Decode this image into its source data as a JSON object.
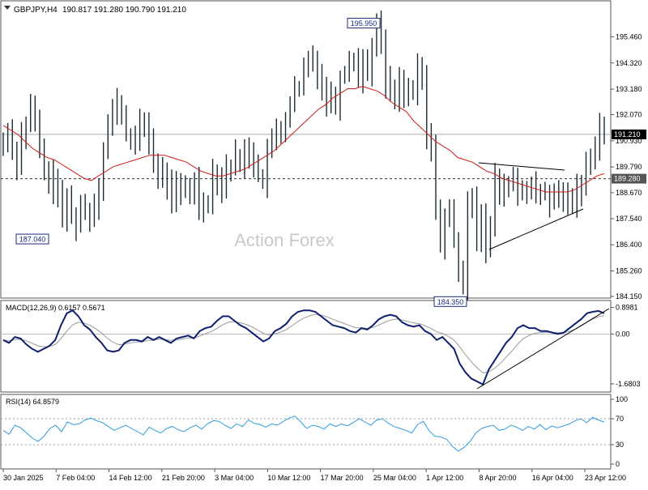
{
  "chart_data": {
    "type": "line",
    "symbol": "GBPJPY,H4",
    "ohlc_header": "190.817 191.280 190.790 191.210",
    "watermark": "Action Forex",
    "x_tick_labels": [
      "30 Jan 2025",
      "7 Feb 04:00",
      "14 Feb 12:00",
      "21 Feb 20:00",
      "3 Mar 04:00",
      "10 Mar 12:00",
      "17 Mar 20:00",
      "25 Mar 04:00",
      "1 Apr 12:00",
      "8 Apr 20:00",
      "16 Apr 04:00",
      "23 Apr 12:00"
    ],
    "price_panel": {
      "ylim": [
        184.15,
        196.57
      ],
      "y_ticks": [
        "195.460",
        "194.320",
        "193.180",
        "192.070",
        "190.930",
        "189.790",
        "188.670",
        "187.540",
        "186.400",
        "185.260",
        "184.150"
      ],
      "current_price": "191.210",
      "current_price_value": 191.21,
      "reference_level": "189.280",
      "reference_level_value": 189.28,
      "annotations": [
        {
          "label": "195.950",
          "value": 195.95
        },
        {
          "label": "187.040",
          "value": 187.04
        },
        {
          "label": "184.350",
          "value": 184.35
        }
      ],
      "price": [
        190.8,
        191.4,
        190.6,
        189.9,
        191.2,
        191.6,
        192.4,
        191.7,
        190.5,
        189.7,
        188.9,
        189.4,
        188.5,
        187.5,
        188.4,
        187.7,
        187.3,
        188.1,
        187.9,
        187.6,
        188.2,
        189.0,
        190.5,
        191.6,
        192.2,
        192.6,
        192.0,
        191.2,
        191.0,
        190.9,
        191.6,
        191.7,
        191.0,
        190.0,
        189.2,
        189.6,
        189.0,
        188.5,
        188.9,
        188.7,
        188.9,
        188.6,
        189.2,
        188.1,
        188.3,
        188.2,
        189.6,
        189.3,
        188.9,
        189.8,
        189.8,
        190.3,
        189.9,
        190.4,
        190.5,
        190.0,
        189.4,
        189.1,
        190.5,
        190.8,
        191.4,
        191.3,
        191.9,
        192.5,
        193.1,
        193.2,
        194.0,
        194.4,
        194.6,
        193.8,
        193.3,
        192.7,
        192.9,
        192.5,
        193.7,
        193.9,
        194.5,
        194.5,
        193.7,
        194.4,
        194.0,
        195.1,
        195.9,
        195.3,
        193.5,
        193.1,
        192.9,
        193.5,
        193.1,
        193.1,
        193.0,
        194.0,
        193.6,
        191.2,
        190.5,
        188.1,
        186.5,
        187.5,
        187.8,
        186.6,
        185.3,
        184.5,
        188.0,
        188.6,
        186.7,
        187.8,
        186.3,
        187.1,
        189.3,
        188.6,
        188.8,
        189.1,
        189.3,
        188.6,
        188.8,
        188.9,
        188.9,
        188.5,
        188.6,
        188.7,
        188.2,
        188.4,
        188.7,
        188.2,
        188.5,
        188.3,
        188.8,
        189.0,
        189.8,
        190.3,
        190.8,
        191.6,
        191.2
      ],
      "ma": [
        191.6,
        191.4,
        191.2,
        190.9,
        190.6,
        190.4,
        190.2,
        190.1,
        189.9,
        189.7,
        189.5,
        189.3,
        189.2,
        189.4,
        189.6,
        189.8,
        189.9,
        190.0,
        190.1,
        190.2,
        190.3,
        190.3,
        190.3,
        190.2,
        190.1,
        190.0,
        189.8,
        189.6,
        189.5,
        189.4,
        189.4,
        189.5,
        189.6,
        189.7,
        189.9,
        190.1,
        190.3,
        190.5,
        190.8,
        191.1,
        191.4,
        191.7,
        192.0,
        192.3,
        192.5,
        192.8,
        193.0,
        193.2,
        193.2,
        193.3,
        193.2,
        193.1,
        192.9,
        192.6,
        192.4,
        192.2,
        191.8,
        191.5,
        191.2,
        190.9,
        190.7,
        190.5,
        190.2,
        190.1,
        190.0,
        189.8,
        189.6,
        189.5,
        189.3,
        189.2,
        189.1,
        189.0,
        188.9,
        188.8,
        188.7,
        188.7,
        188.7,
        188.7,
        188.8,
        189.0,
        189.2,
        189.4,
        189.5
      ]
    },
    "macd_panel": {
      "label": "MACD(12,26,9) 0.6157 0.5671",
      "ylim": [
        -1.9,
        1.05
      ],
      "y_ticks": [
        "0.8981",
        "0.00",
        "-1.6803"
      ],
      "macd": [
        -0.2,
        -0.3,
        -0.1,
        -0.15,
        -0.35,
        -0.5,
        -0.6,
        -0.5,
        -0.4,
        -0.2,
        0.3,
        0.7,
        0.8,
        0.6,
        0.3,
        0.15,
        -0.1,
        -0.3,
        -0.55,
        -0.6,
        -0.55,
        -0.3,
        -0.2,
        -0.2,
        -0.25,
        -0.1,
        -0.2,
        -0.1,
        -0.2,
        -0.3,
        -0.15,
        -0.1,
        -0.05,
        -0.15,
        0.1,
        0.2,
        0.25,
        0.45,
        0.6,
        0.6,
        0.45,
        0.3,
        0.2,
        0.05,
        -0.1,
        -0.25,
        -0.15,
        0.1,
        0.2,
        0.35,
        0.6,
        0.75,
        0.8,
        0.8,
        0.75,
        0.6,
        0.45,
        0.3,
        0.25,
        0.2,
        0.1,
        0.05,
        0.2,
        0.15,
        0.3,
        0.5,
        0.6,
        0.65,
        0.6,
        0.4,
        0.3,
        0.25,
        0.3,
        0.1,
        0.0,
        -0.2,
        -0.1,
        -0.3,
        -0.5,
        -1.0,
        -1.3,
        -1.5,
        -1.6,
        -1.7,
        -1.2,
        -0.9,
        -0.6,
        -0.3,
        -0.1,
        0.2,
        0.3,
        0.2,
        0.2,
        0.1,
        0.1,
        0.05,
        0.0,
        0.05,
        0.2,
        0.35,
        0.5,
        0.7,
        0.75,
        0.78,
        0.7
      ]
    },
    "rsi_panel": {
      "label": "RSI(14) 64.8579",
      "ylim": [
        0,
        100
      ],
      "y_ticks": [
        "100",
        "70",
        "30",
        "0"
      ],
      "levels": [
        70,
        30
      ],
      "rsi": [
        52,
        46,
        60,
        56,
        48,
        40,
        35,
        43,
        55,
        60,
        50,
        65,
        61,
        62,
        68,
        71,
        67,
        64,
        58,
        52,
        56,
        60,
        55,
        50,
        45,
        57,
        52,
        48,
        55,
        58,
        53,
        50,
        56,
        60,
        54,
        62,
        67,
        66,
        60,
        55,
        62,
        58,
        68,
        63,
        61,
        57,
        62,
        60,
        66,
        71,
        74,
        65,
        55,
        60,
        58,
        54,
        62,
        58,
        62,
        59,
        64,
        70,
        65,
        60,
        68,
        70,
        63,
        58,
        55,
        52,
        48,
        61,
        66,
        51,
        43,
        42,
        38,
        27,
        20,
        26,
        35,
        48,
        55,
        58,
        60,
        52,
        54,
        60,
        57,
        52,
        58,
        54,
        61,
        53,
        59,
        56,
        59,
        62,
        67,
        70,
        64,
        72,
        68,
        65
      ]
    }
  }
}
